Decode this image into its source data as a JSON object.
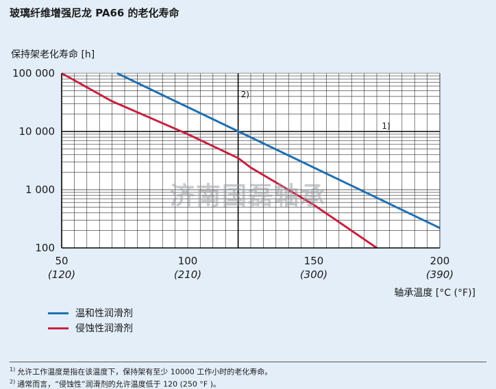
{
  "title": "玻璃纤维增强尼龙 PA66 的老化寿命",
  "watermark": "济南国磊轴承",
  "chart_data": {
    "type": "line",
    "ylabel": "保持架老化寿命 [h]",
    "xlabel": "轴承温度 [°C (°F)]",
    "y_scale": "log",
    "ylim": [
      100,
      100000
    ],
    "xlim": [
      50,
      200
    ],
    "y_ticks": [
      {
        "value": 100000,
        "label": "100 000"
      },
      {
        "value": 10000,
        "label": "10 000"
      },
      {
        "value": 1000,
        "label": "1 000"
      },
      {
        "value": 100,
        "label": "100"
      }
    ],
    "x_ticks": [
      {
        "value": 50,
        "label": "50",
        "sublabel": "(120)"
      },
      {
        "value": 100,
        "label": "100",
        "sublabel": "(210)"
      },
      {
        "value": 150,
        "label": "150",
        "sublabel": "(300)"
      },
      {
        "value": 200,
        "label": "200",
        "sublabel": "(390)"
      }
    ],
    "grid": true,
    "series": [
      {
        "name": "温和性润滑剂",
        "color": "#1f6fb3",
        "x": [
          72,
          200
        ],
        "y": [
          100000,
          220
        ]
      },
      {
        "name": "侵蚀性润滑剂",
        "color": "#c8203e",
        "x": [
          50,
          70,
          100,
          120,
          125,
          150,
          175
        ],
        "y": [
          100000,
          33000,
          9000,
          3500,
          2400,
          550,
          100
        ]
      }
    ],
    "annotations": [
      {
        "label": "2)",
        "x": 120,
        "note": "vertical reference line"
      },
      {
        "label": "1)",
        "y": 10000,
        "note": "horizontal reference line"
      }
    ]
  },
  "legend": [
    {
      "label": "温和性润滑剂",
      "color": "#1f6fb3"
    },
    {
      "label": "侵蚀性润滑剂",
      "color": "#c8203e"
    }
  ],
  "footnotes": [
    {
      "mark": "1)",
      "text": "允许工作温度是指在该温度下，保持架有至少 10000 工作小时的老化寿命。"
    },
    {
      "mark": "2)",
      "text": "通常而言，“侵蚀性”润滑剂的允许温度低于 120    (250 °F )。"
    }
  ]
}
